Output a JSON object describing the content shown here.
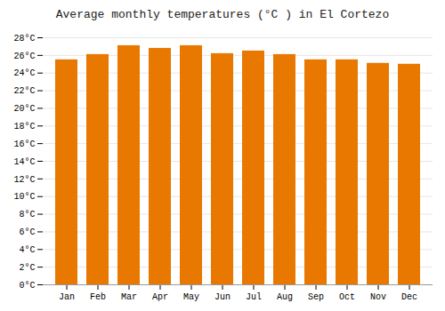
{
  "chart_data": {
    "type": "bar",
    "title": "Average monthly temperatures (°C ) in El Cortezo",
    "categories": [
      "Jan",
      "Feb",
      "Mar",
      "Apr",
      "May",
      "Jun",
      "Jul",
      "Aug",
      "Sep",
      "Oct",
      "Nov",
      "Dec"
    ],
    "values": [
      25.5,
      26.1,
      27.1,
      26.8,
      27.1,
      26.2,
      26.5,
      26.1,
      25.5,
      25.5,
      25.1,
      25.0
    ],
    "color": "#E87800",
    "ylim": [
      0,
      28
    ],
    "yticks": [
      {
        "value": 0,
        "label": "0°C"
      },
      {
        "value": 2,
        "label": "2°C"
      },
      {
        "value": 4,
        "label": "4°C"
      },
      {
        "value": 6,
        "label": "6°C"
      },
      {
        "value": 8,
        "label": "8°C"
      },
      {
        "value": 10,
        "label": "10°C"
      },
      {
        "value": 12,
        "label": "12°C"
      },
      {
        "value": 14,
        "label": "14°C"
      },
      {
        "value": 16,
        "label": "16°C"
      },
      {
        "value": 18,
        "label": "18°C"
      },
      {
        "value": 20,
        "label": "20°C"
      },
      {
        "value": 22,
        "label": "22°C"
      },
      {
        "value": 24,
        "label": "24°C"
      },
      {
        "value": 26,
        "label": "26°C"
      },
      {
        "value": 28,
        "label": "28°C"
      }
    ],
    "grid": true
  }
}
